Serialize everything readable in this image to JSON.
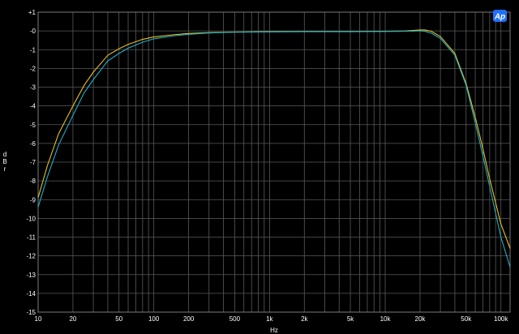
{
  "chart_data": {
    "type": "line",
    "xscale": "log",
    "xlim": [
      10,
      120000
    ],
    "ylim": [
      -15,
      1
    ],
    "xlabel": "Hz",
    "ylabel": "dBr",
    "ylabel_chars": [
      "d",
      "B",
      "r"
    ],
    "x_ticks": [
      {
        "v": 10,
        "label": "10"
      },
      {
        "v": 20,
        "label": "20"
      },
      {
        "v": 50,
        "label": "50"
      },
      {
        "v": 100,
        "label": "100"
      },
      {
        "v": 200,
        "label": "200"
      },
      {
        "v": 500,
        "label": "500"
      },
      {
        "v": 1000,
        "label": "1k"
      },
      {
        "v": 2000,
        "label": "2k"
      },
      {
        "v": 5000,
        "label": "5k"
      },
      {
        "v": 10000,
        "label": "10k"
      },
      {
        "v": 20000,
        "label": "20k"
      },
      {
        "v": 50000,
        "label": "50k"
      },
      {
        "v": 100000,
        "label": "100k"
      }
    ],
    "y_ticks": [
      {
        "v": 1,
        "label": "+1"
      },
      {
        "v": 0,
        "label": "-0"
      },
      {
        "v": -1,
        "label": "-1"
      },
      {
        "v": -2,
        "label": "-2"
      },
      {
        "v": -3,
        "label": "-3"
      },
      {
        "v": -4,
        "label": "-4"
      },
      {
        "v": -5,
        "label": "-5"
      },
      {
        "v": -6,
        "label": "-6"
      },
      {
        "v": -7,
        "label": "-7"
      },
      {
        "v": -8,
        "label": "-8"
      },
      {
        "v": -9,
        "label": "-9"
      },
      {
        "v": -10,
        "label": "-10"
      },
      {
        "v": -11,
        "label": "-11"
      },
      {
        "v": -12,
        "label": "-12"
      },
      {
        "v": -13,
        "label": "-13"
      },
      {
        "v": -14,
        "label": "-14"
      },
      {
        "v": -15,
        "label": "-15"
      }
    ],
    "grid": true,
    "series": [
      {
        "color": "#e8c020",
        "x": [
          10,
          12,
          15,
          20,
          25,
          30,
          40,
          50,
          60,
          80,
          100,
          150,
          200,
          300,
          500,
          1000,
          2000,
          5000,
          10000,
          15000,
          20000,
          22000,
          25000,
          30000,
          40000,
          50000,
          60000,
          70000,
          80000,
          100000,
          120000
        ],
        "y": [
          -8.9,
          -7.2,
          -5.5,
          -4.0,
          -2.9,
          -2.2,
          -1.3,
          -0.95,
          -0.72,
          -0.45,
          -0.32,
          -0.2,
          -0.14,
          -0.09,
          -0.06,
          -0.04,
          -0.03,
          -0.03,
          -0.02,
          0.0,
          0.05,
          0.05,
          -0.02,
          -0.3,
          -1.2,
          -2.8,
          -4.6,
          -6.3,
          -7.9,
          -10.3,
          -11.6
        ]
      },
      {
        "color": "#20b0c8",
        "x": [
          10,
          12,
          15,
          20,
          25,
          30,
          40,
          50,
          60,
          80,
          100,
          150,
          200,
          300,
          500,
          1000,
          2000,
          5000,
          10000,
          15000,
          20000,
          22000,
          25000,
          30000,
          40000,
          50000,
          60000,
          70000,
          80000,
          100000,
          120000
        ],
        "y": [
          -9.4,
          -7.8,
          -6.1,
          -4.5,
          -3.3,
          -2.6,
          -1.6,
          -1.2,
          -0.92,
          -0.6,
          -0.42,
          -0.26,
          -0.18,
          -0.11,
          -0.07,
          -0.05,
          -0.04,
          -0.04,
          -0.03,
          -0.02,
          0.0,
          -0.02,
          -0.12,
          -0.4,
          -1.3,
          -2.9,
          -4.9,
          -6.7,
          -8.3,
          -11.0,
          -12.6
        ]
      }
    ]
  },
  "logo": {
    "text": "Ap",
    "color": "#1e6fff"
  }
}
